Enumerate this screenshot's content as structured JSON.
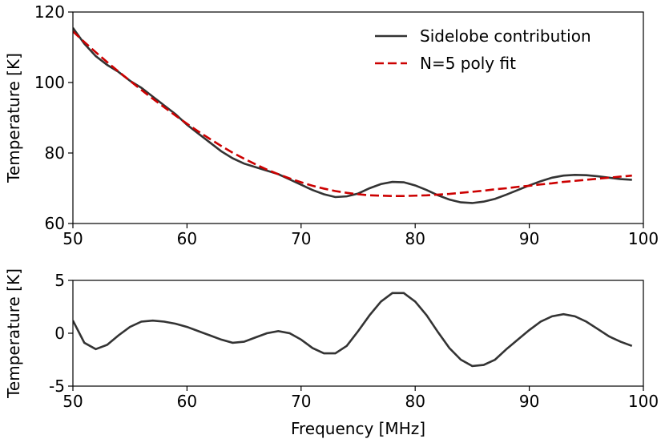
{
  "chart_data": [
    {
      "type": "line",
      "ylabel": "Temperature [K]",
      "x": [
        50,
        51,
        52,
        53,
        54,
        55,
        56,
        57,
        58,
        59,
        60,
        61,
        62,
        63,
        64,
        65,
        66,
        67,
        68,
        69,
        70,
        71,
        72,
        73,
        74,
        75,
        76,
        77,
        78,
        79,
        80,
        81,
        82,
        83,
        84,
        85,
        86,
        87,
        88,
        89,
        90,
        91,
        92,
        93,
        94,
        95,
        96,
        97,
        98,
        99
      ],
      "series": [
        {
          "name": "Sidelobe contribution",
          "color": "#333333",
          "linestyle": "solid",
          "values": [
            115.5,
            111,
            107.5,
            105,
            103,
            100.5,
            98.5,
            96,
            93.5,
            91,
            88,
            85.5,
            83,
            80.5,
            78.5,
            77,
            76,
            75,
            74,
            72.5,
            71,
            69.5,
            68.3,
            67.5,
            67.7,
            68.5,
            70,
            71.2,
            71.8,
            71.7,
            70.8,
            69.5,
            68,
            66.8,
            66,
            65.8,
            66.2,
            67,
            68.2,
            69.5,
            70.8,
            72,
            73,
            73.6,
            73.8,
            73.7,
            73.4,
            73,
            72.6,
            72.4
          ]
        },
        {
          "name": "N=5 poly fit",
          "color": "#cc0000",
          "linestyle": "dashed",
          "values": [
            114.5,
            111.5,
            108.6,
            105.8,
            103.1,
            100.5,
            97.9,
            95.4,
            93,
            90.6,
            88.3,
            86.1,
            84,
            82,
            80.1,
            78.4,
            76.8,
            75.3,
            74,
            72.8,
            71.7,
            70.7,
            69.9,
            69.2,
            68.7,
            68.3,
            68,
            67.9,
            67.8,
            67.8,
            67.9,
            68,
            68.2,
            68.4,
            68.7,
            69,
            69.3,
            69.7,
            70,
            70.4,
            70.7,
            71.1,
            71.4,
            71.8,
            72.1,
            72.4,
            72.7,
            73,
            73.3,
            73.6
          ]
        }
      ],
      "xlim": [
        50,
        100
      ],
      "xticks": [
        50,
        60,
        70,
        80,
        90,
        100
      ],
      "ylim": [
        60,
        120
      ],
      "yticks": [
        60,
        80,
        100,
        120
      ],
      "legend": "upper right"
    },
    {
      "type": "line",
      "ylabel": "Temperature [K]",
      "xlabel": "Frequency [MHz]",
      "x": [
        50,
        51,
        52,
        53,
        54,
        55,
        56,
        57,
        58,
        59,
        60,
        61,
        62,
        63,
        64,
        65,
        66,
        67,
        68,
        69,
        70,
        71,
        72,
        73,
        74,
        75,
        76,
        77,
        78,
        79,
        80,
        81,
        82,
        83,
        84,
        85,
        86,
        87,
        88,
        89,
        90,
        91,
        92,
        93,
        94,
        95,
        96,
        97,
        98,
        99
      ],
      "color": "#333333",
      "values": [
        1.2,
        -0.9,
        -1.5,
        -1.1,
        -0.2,
        0.6,
        1.1,
        1.2,
        1.1,
        0.9,
        0.6,
        0.2,
        -0.2,
        -0.6,
        -0.9,
        -0.8,
        -0.4,
        0.0,
        0.2,
        0.0,
        -0.6,
        -1.4,
        -1.9,
        -1.9,
        -1.2,
        0.2,
        1.7,
        3.0,
        3.8,
        3.8,
        3.0,
        1.7,
        0.1,
        -1.4,
        -2.5,
        -3.1,
        -3.0,
        -2.5,
        -1.5,
        -0.6,
        0.3,
        1.1,
        1.6,
        1.8,
        1.6,
        1.1,
        0.4,
        -0.3,
        -0.8,
        -1.2
      ],
      "xlim": [
        50,
        100
      ],
      "xticks": [
        50,
        60,
        70,
        80,
        90,
        100
      ],
      "ylim": [
        -5,
        5
      ],
      "yticks": [
        -5,
        0,
        5
      ]
    }
  ]
}
